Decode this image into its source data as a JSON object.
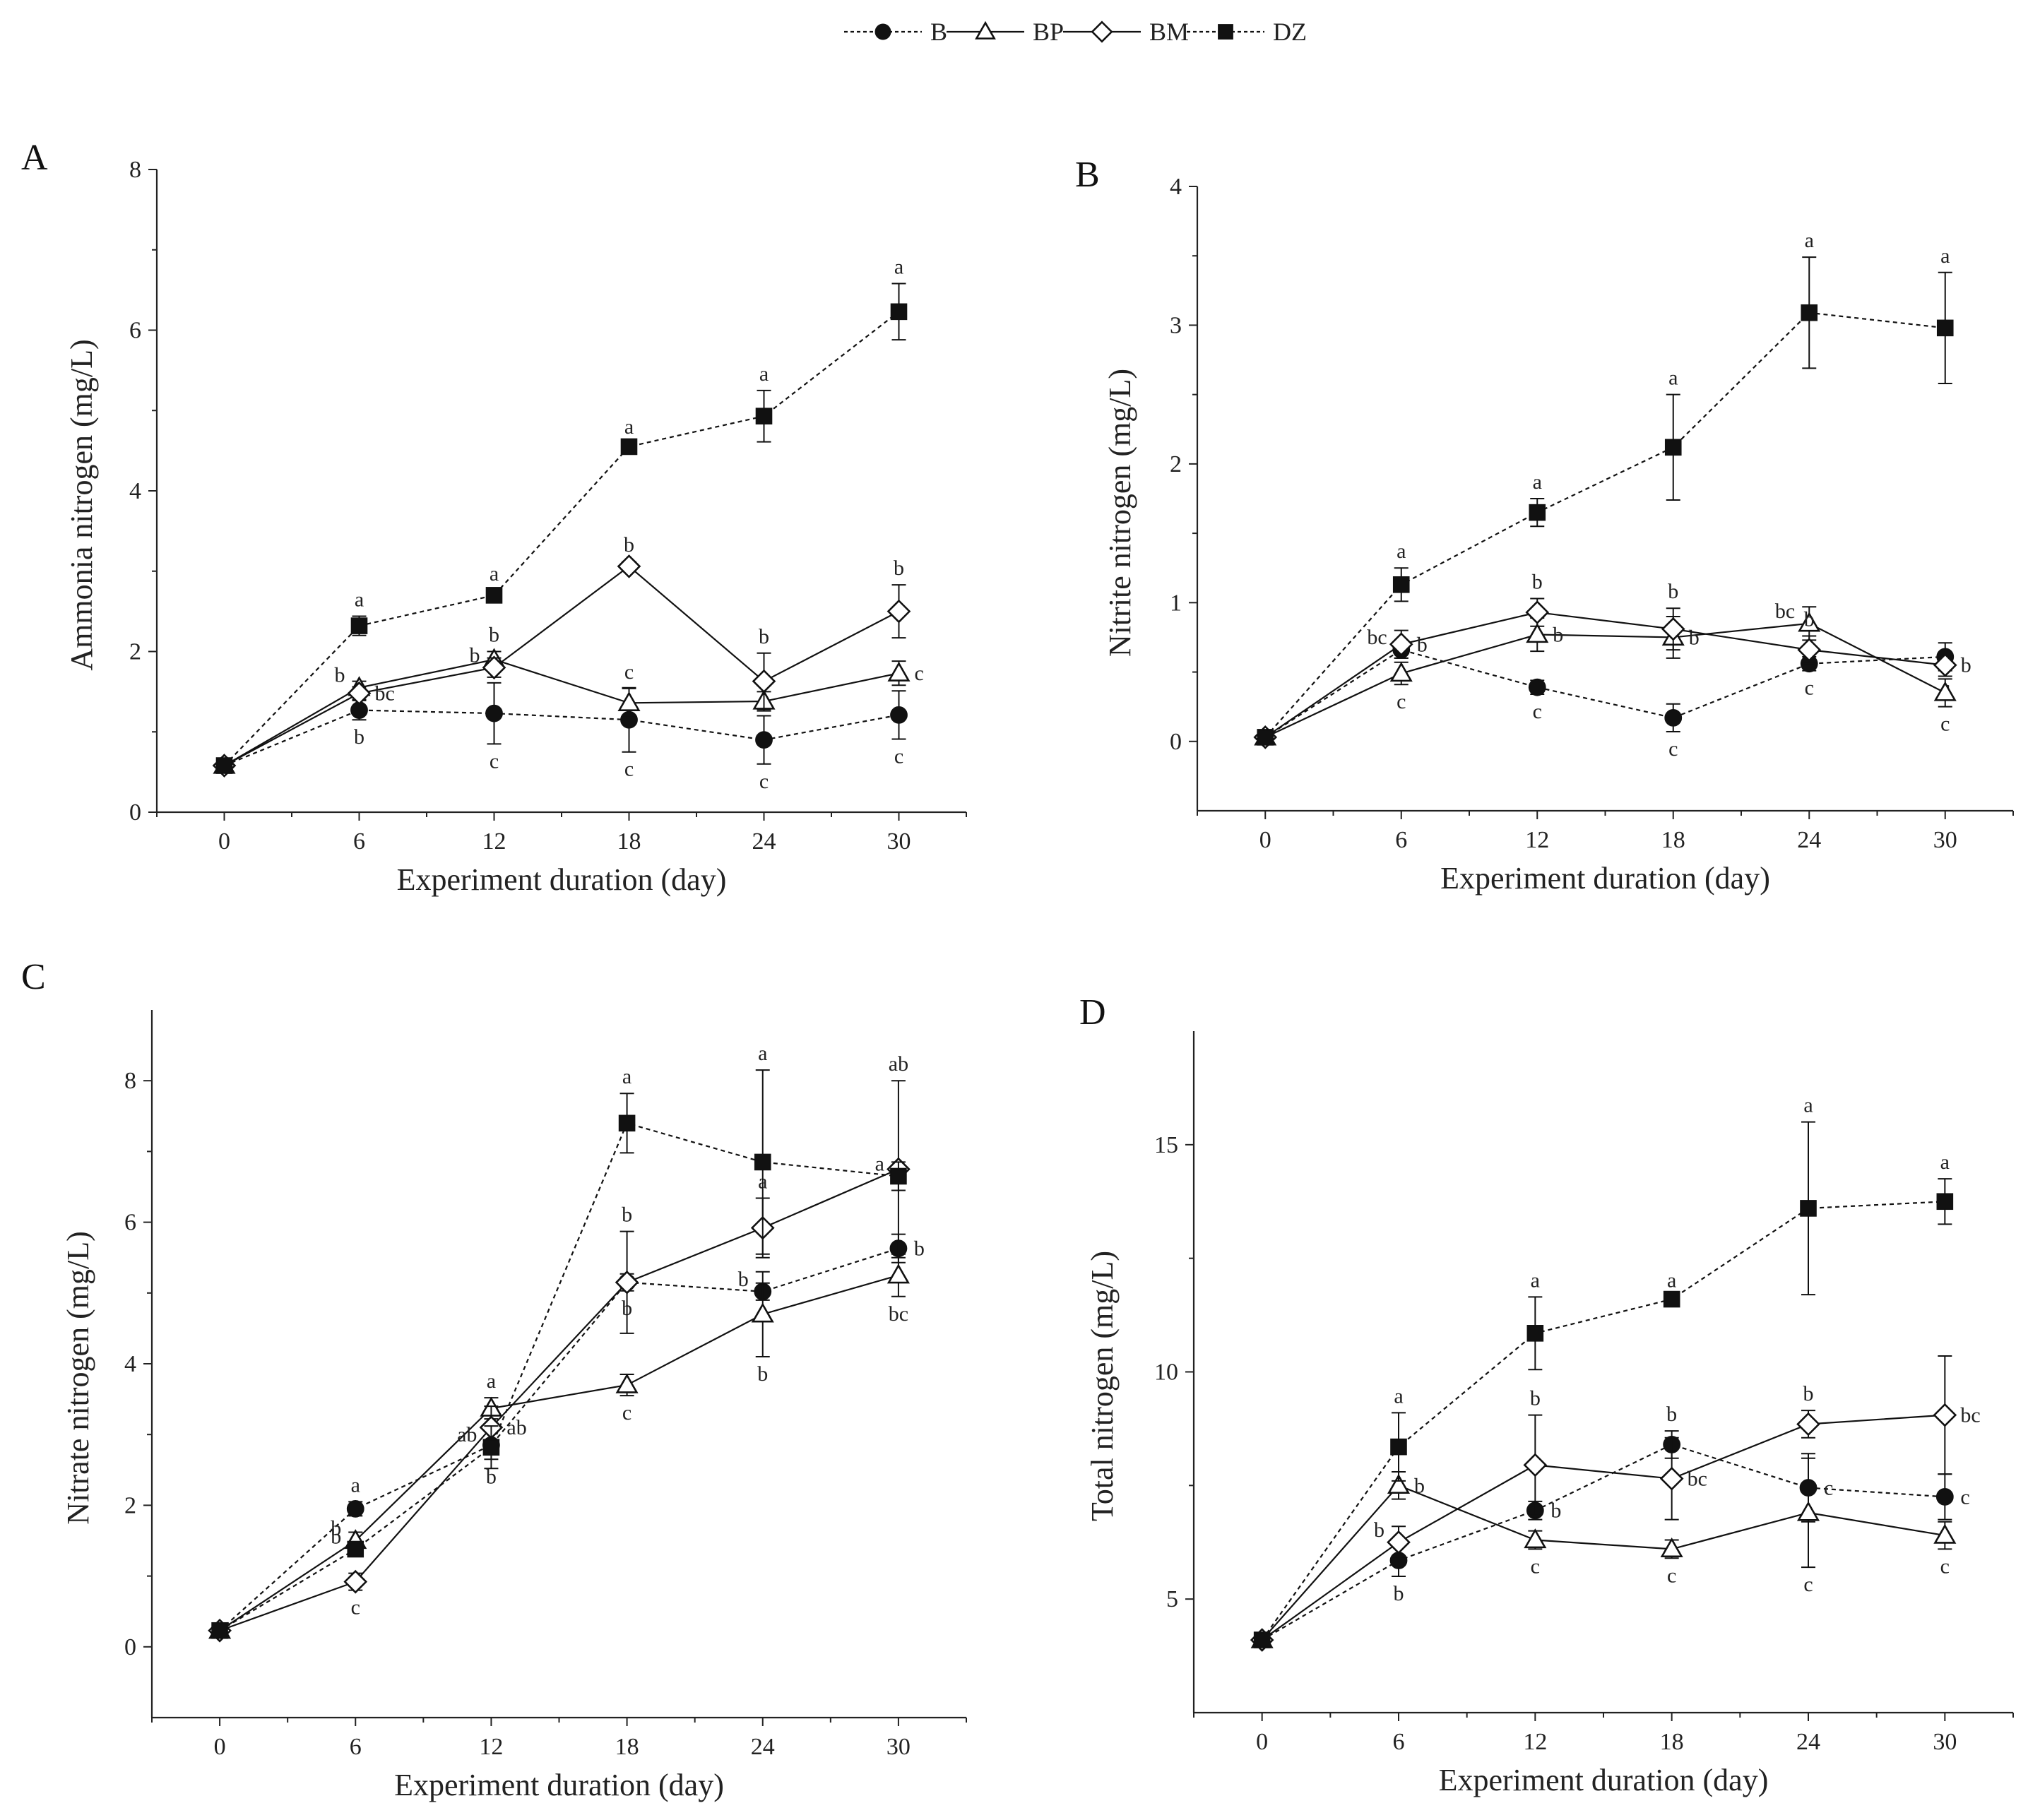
{
  "legend": [
    {
      "name": "B",
      "marker": "circle-filled",
      "dashed": true
    },
    {
      "name": "BP",
      "marker": "triangle-open",
      "dashed": false
    },
    {
      "name": "BM",
      "marker": "diamond-open",
      "dashed": false
    },
    {
      "name": "DZ",
      "marker": "square-filled",
      "dashed": true
    }
  ],
  "chart_data": [
    {
      "panel": "A",
      "type": "line",
      "xlabel": "Experiment duration (day)",
      "ylabel": "Ammonia nitrogen (mg/L)",
      "x": [
        0,
        6,
        12,
        18,
        24,
        30
      ],
      "xticks": [
        0,
        6,
        12,
        18,
        24,
        30
      ],
      "yticks": [
        0,
        2,
        4,
        6,
        8
      ],
      "ylim": [
        0,
        8
      ],
      "xlim": [
        -3,
        33
      ],
      "series": [
        {
          "name": "B",
          "values": [
            0.58,
            1.27,
            1.23,
            1.15,
            0.9,
            1.21
          ],
          "err": [
            0.05,
            0.12,
            0.38,
            0.4,
            0.3,
            0.3
          ],
          "sig": [
            "",
            "b",
            "c",
            "c",
            "c",
            "c"
          ],
          "sig_pos": [
            "",
            "below",
            "below",
            "below",
            "below",
            "below"
          ]
        },
        {
          "name": "BP",
          "values": [
            0.58,
            1.55,
            1.9,
            1.36,
            1.38,
            1.73
          ],
          "err": [
            0.05,
            0.08,
            0.1,
            0.18,
            0.12,
            0.15
          ],
          "sig": [
            "",
            "b",
            "b",
            "c",
            "",
            "c"
          ],
          "sig_pos": [
            "",
            "left",
            "above",
            "above",
            "",
            "right"
          ]
        },
        {
          "name": "BM",
          "values": [
            0.58,
            1.48,
            1.8,
            3.06,
            1.63,
            2.5
          ],
          "err": [
            0.05,
            0.08,
            0.12,
            0.06,
            0.35,
            0.33
          ],
          "sig": [
            "",
            "bc",
            "b",
            "b",
            "b",
            "b"
          ],
          "sig_pos": [
            "",
            "right",
            "left",
            "above",
            "above",
            "above"
          ]
        },
        {
          "name": "DZ",
          "values": [
            0.58,
            2.32,
            2.7,
            4.55,
            4.93,
            6.23
          ],
          "err": [
            0.05,
            0.12,
            0.06,
            0.04,
            0.32,
            0.35
          ],
          "sig": [
            "",
            "a",
            "a",
            "a",
            "a",
            "a"
          ],
          "sig_pos": [
            "",
            "above",
            "above",
            "above",
            "above",
            "above"
          ]
        }
      ]
    },
    {
      "panel": "B",
      "type": "line",
      "xlabel": "Experiment duration (day)",
      "ylabel": "Nitrite nitrogen (mg/L)",
      "x": [
        0,
        6,
        12,
        18,
        24,
        30
      ],
      "xticks": [
        0,
        6,
        12,
        18,
        24,
        30
      ],
      "yticks": [
        0,
        1,
        2,
        3,
        4
      ],
      "ylim": [
        -0.5,
        4
      ],
      "xlim": [
        -3,
        33
      ],
      "series": [
        {
          "name": "B",
          "values": [
            0.03,
            0.66,
            0.39,
            0.17,
            0.56,
            0.61
          ],
          "err": [
            0.02,
            0.06,
            0.05,
            0.1,
            0.05,
            0.1
          ],
          "sig": [
            "",
            "bc",
            "c",
            "c",
            "c",
            "c"
          ],
          "sig_pos": [
            "",
            "left",
            "below",
            "below",
            "below",
            "below"
          ]
        },
        {
          "name": "BP",
          "values": [
            0.03,
            0.49,
            0.77,
            0.75,
            0.85,
            0.35
          ],
          "err": [
            0.02,
            0.08,
            0.12,
            0.15,
            0.12,
            0.1
          ],
          "sig": [
            "",
            "c",
            "b",
            "b",
            "bc",
            "c"
          ],
          "sig_pos": [
            "",
            "below",
            "right",
            "right",
            "left",
            "below"
          ]
        },
        {
          "name": "BM",
          "values": [
            0.03,
            0.7,
            0.93,
            0.81,
            0.66,
            0.55
          ],
          "err": [
            0.02,
            0.1,
            0.1,
            0.15,
            0.1,
            0.08
          ],
          "sig": [
            "",
            "b",
            "b",
            "b",
            "b",
            "b"
          ],
          "sig_pos": [
            "",
            "right",
            "above",
            "above",
            "above",
            "right"
          ]
        },
        {
          "name": "DZ",
          "values": [
            0.03,
            1.13,
            1.65,
            2.12,
            3.09,
            2.98
          ],
          "err": [
            0.02,
            0.12,
            0.1,
            0.38,
            0.4,
            0.4
          ],
          "sig": [
            "",
            "a",
            "a",
            "a",
            "a",
            "a"
          ],
          "sig_pos": [
            "",
            "above",
            "above",
            "above",
            "above",
            "above"
          ]
        }
      ]
    },
    {
      "panel": "C",
      "type": "line",
      "xlabel": "Experiment duration (day)",
      "ylabel": "Nitrate nitrogen (mg/L)",
      "x": [
        0,
        6,
        12,
        18,
        24,
        30
      ],
      "xticks": [
        0,
        6,
        12,
        18,
        24,
        30
      ],
      "yticks": [
        0,
        2,
        4,
        6,
        8
      ],
      "ylim": [
        -1,
        9
      ],
      "xlim": [
        -3,
        33
      ],
      "series": [
        {
          "name": "B",
          "values": [
            0.23,
            1.95,
            2.85,
            5.15,
            5.02,
            5.63
          ],
          "err": [
            0.05,
            0.1,
            0.2,
            0.12,
            0.12,
            0.2
          ],
          "sig": [
            "",
            "a",
            "b",
            "b",
            "b",
            "b"
          ],
          "sig_pos": [
            "",
            "above",
            "below",
            "below",
            "left",
            "right"
          ]
        },
        {
          "name": "BP",
          "values": [
            0.23,
            1.5,
            3.37,
            3.7,
            4.7,
            5.25
          ],
          "err": [
            0.05,
            0.12,
            0.15,
            0.15,
            0.6,
            0.3
          ],
          "sig": [
            "",
            "b",
            "a",
            "c",
            "b",
            "bc"
          ],
          "sig_pos": [
            "",
            "left",
            "above",
            "below",
            "below",
            "below"
          ]
        },
        {
          "name": "BM",
          "values": [
            0.23,
            0.92,
            3.1,
            5.15,
            5.92,
            6.75
          ],
          "err": [
            0.05,
            0.12,
            0.3,
            0.72,
            0.42,
            1.25
          ],
          "sig": [
            "",
            "c",
            "ab",
            "b",
            "a",
            "ab"
          ],
          "sig_pos": [
            "",
            "below",
            "right",
            "above",
            "above",
            "above"
          ]
        },
        {
          "name": "DZ",
          "values": [
            0.23,
            1.38,
            2.82,
            7.4,
            6.85,
            6.65
          ],
          "err": [
            0.05,
            0.1,
            0.3,
            0.42,
            1.3,
            0.2
          ],
          "sig": [
            "",
            "b",
            "ab",
            "a",
            "a",
            "a"
          ],
          "sig_pos": [
            "",
            "left",
            "left",
            "above",
            "above",
            "left"
          ]
        }
      ]
    },
    {
      "panel": "D",
      "type": "line",
      "xlabel": "Experiment duration (day)",
      "ylabel": "Total nitrogen (mg/L)",
      "x": [
        0,
        6,
        12,
        18,
        24,
        30
      ],
      "xticks": [
        0,
        6,
        12,
        18,
        24,
        30
      ],
      "yticks": [
        5,
        10,
        15
      ],
      "ylim": [
        2.5,
        17.5
      ],
      "xlim": [
        -3,
        33
      ],
      "series": [
        {
          "name": "B",
          "values": [
            4.1,
            5.85,
            6.95,
            8.4,
            7.45,
            7.25
          ],
          "err": [
            0.08,
            0.35,
            0.2,
            0.3,
            0.75,
            0.5
          ],
          "sig": [
            "",
            "b",
            "b",
            "b",
            "c",
            "c"
          ],
          "sig_pos": [
            "",
            "below",
            "right",
            "above",
            "right",
            "right"
          ]
        },
        {
          "name": "BP",
          "values": [
            4.1,
            7.5,
            6.3,
            6.1,
            6.9,
            6.4
          ],
          "err": [
            0.08,
            0.3,
            0.2,
            0.2,
            1.2,
            0.3
          ],
          "sig": [
            "",
            "b",
            "c",
            "c",
            "c",
            "c"
          ],
          "sig_pos": [
            "",
            "right",
            "below",
            "below",
            "below",
            "below"
          ]
        },
        {
          "name": "BM",
          "values": [
            4.1,
            6.25,
            7.95,
            7.65,
            8.85,
            9.05
          ],
          "err": [
            0.08,
            0.35,
            1.1,
            0.9,
            0.3,
            1.3
          ],
          "sig": [
            "",
            "b",
            "b",
            "bc",
            "b",
            "bc"
          ],
          "sig_pos": [
            "",
            "left",
            "above",
            "right",
            "above",
            "right"
          ]
        },
        {
          "name": "DZ",
          "values": [
            4.1,
            8.35,
            10.85,
            11.6,
            13.6,
            13.75
          ],
          "err": [
            0.08,
            0.75,
            0.8,
            0.05,
            1.9,
            0.5
          ],
          "sig": [
            "",
            "a",
            "a",
            "a",
            "a",
            "a"
          ],
          "sig_pos": [
            "",
            "above",
            "above",
            "above",
            "above",
            "above"
          ]
        }
      ]
    }
  ]
}
